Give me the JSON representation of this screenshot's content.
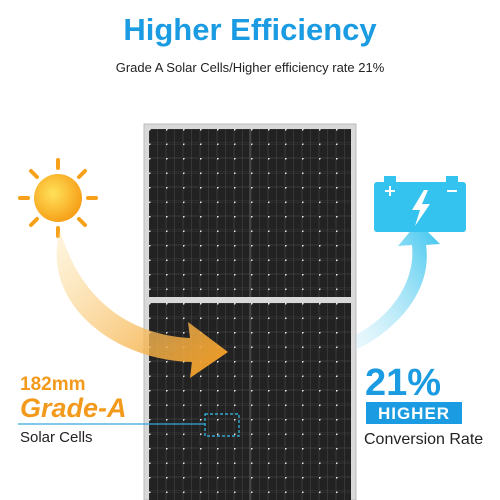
{
  "header": {
    "title": "Higher Efficiency",
    "subtitle": "Grade A Solar Cells/Higher efficiency rate 21%"
  },
  "left_callout": {
    "size": "182mm",
    "grade": "Grade-A",
    "label": "Solar Cells"
  },
  "right_callout": {
    "rate": "21%",
    "badge": "HIGHER",
    "label": "Conversion Rate"
  }
}
